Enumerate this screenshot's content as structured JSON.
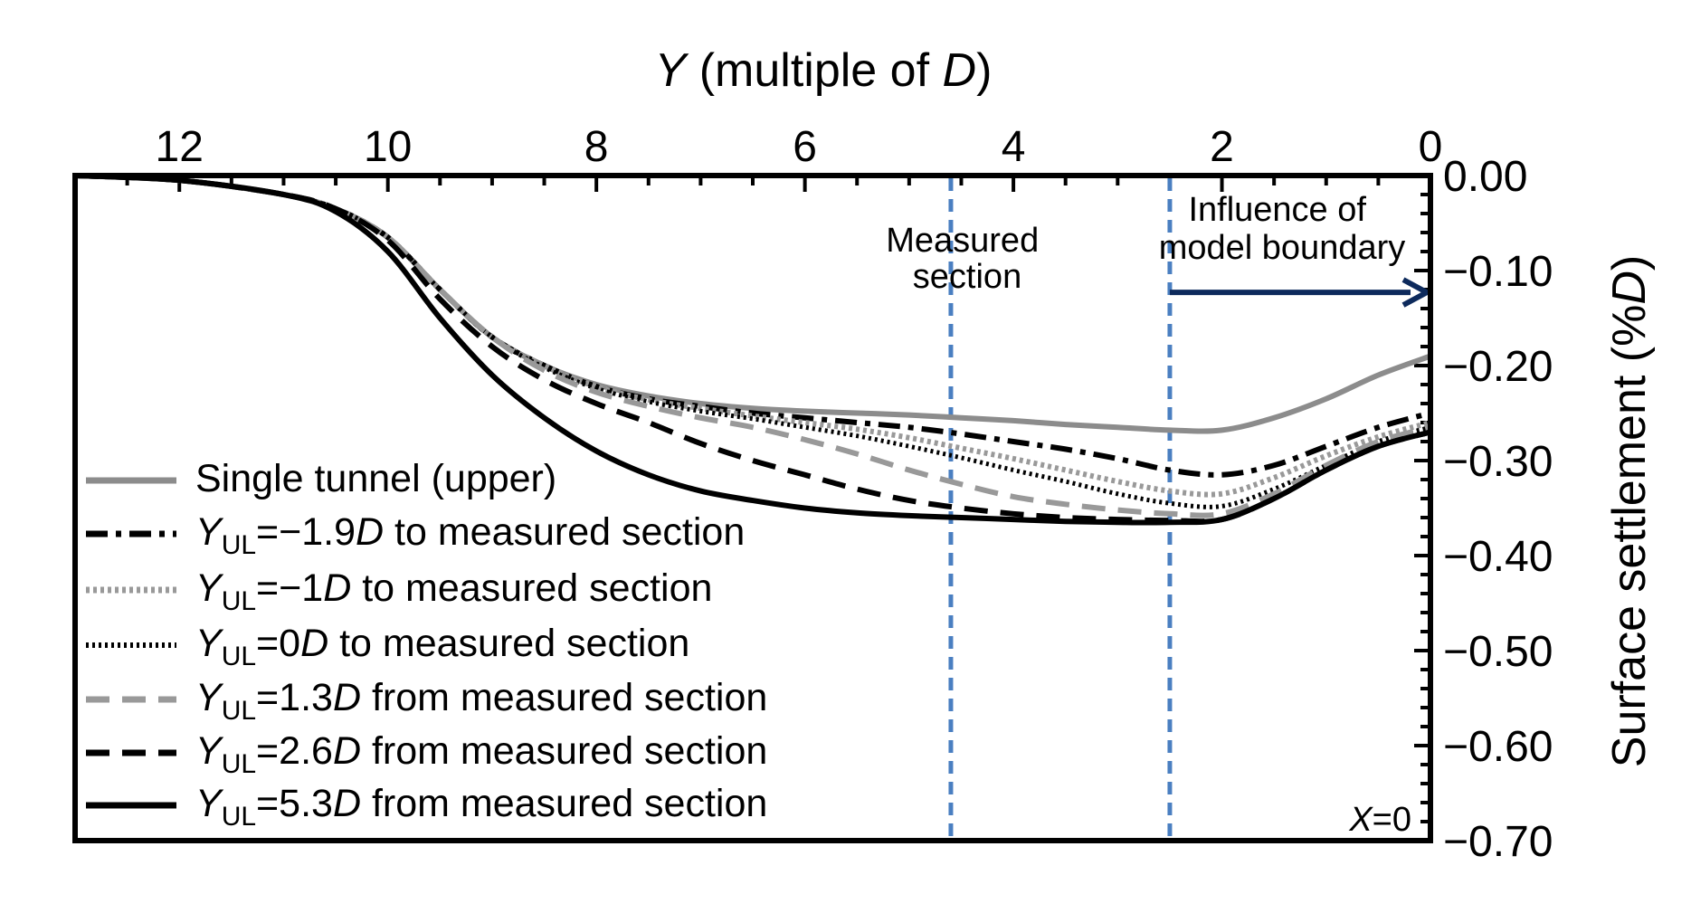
{
  "chart_data": {
    "type": "line",
    "x_axis": {
      "label_var": "Y",
      "label_text": " (multiple of ",
      "label_unit": "D",
      "label_close": ")",
      "position": "top",
      "reversed": true,
      "range": [
        13.0,
        0
      ],
      "ticks": [
        12,
        10,
        8,
        6,
        4,
        2,
        0
      ],
      "tick_labels": [
        "12",
        "10",
        "8",
        "6",
        "4",
        "2",
        "0"
      ]
    },
    "y_axis": {
      "label_text": "Surface settlement (%",
      "label_unit": "D",
      "label_close": ")",
      "position": "right",
      "range": [
        -0.7,
        0.0
      ],
      "ticks": [
        0.0,
        -0.1,
        -0.2,
        -0.3,
        -0.4,
        -0.5,
        -0.6,
        -0.7
      ],
      "tick_labels": [
        "0.00",
        "−0.10",
        "−0.20",
        "−0.30",
        "−0.40",
        "−0.50",
        "−0.60",
        "−0.70"
      ]
    },
    "grid": false,
    "legend_position": "bottom-left",
    "x_values": [
      13.0,
      12.0,
      11.0,
      10.5,
      10.0,
      9.5,
      9.0,
      8.5,
      8.0,
      7.5,
      7.0,
      6.5,
      6.0,
      5.5,
      5.0,
      4.5,
      4.0,
      3.5,
      3.0,
      2.5,
      2.0,
      1.5,
      1.0,
      0.5,
      0.0
    ],
    "series": [
      {
        "name_text": "Single tunnel (upper)",
        "color": "#8c8c8c",
        "style": "solid",
        "width": 6,
        "y": [
          0,
          -0.005,
          -0.02,
          -0.035,
          -0.065,
          -0.12,
          -0.17,
          -0.2,
          -0.22,
          -0.232,
          -0.24,
          -0.245,
          -0.248,
          -0.25,
          -0.252,
          -0.255,
          -0.258,
          -0.262,
          -0.265,
          -0.268,
          -0.268,
          -0.255,
          -0.235,
          -0.21,
          -0.19
        ]
      },
      {
        "name_var": "Y",
        "name_sub": "UL",
        "name_eq": "=−1.9",
        "name_unit": "D",
        "name_rest": " to measured section",
        "color": "#000000",
        "style": "dashdot",
        "width": 6,
        "y": [
          0,
          -0.005,
          -0.02,
          -0.035,
          -0.065,
          -0.12,
          -0.17,
          -0.2,
          -0.222,
          -0.235,
          -0.243,
          -0.25,
          -0.255,
          -0.26,
          -0.265,
          -0.272,
          -0.28,
          -0.288,
          -0.298,
          -0.31,
          -0.315,
          -0.305,
          -0.285,
          -0.265,
          -0.25
        ]
      },
      {
        "name_var": "Y",
        "name_sub": "UL",
        "name_eq": "=−1",
        "name_unit": "D",
        "name_rest": " to measured section",
        "color": "#999999",
        "style": "dotted",
        "width": 6,
        "y": [
          0,
          -0.005,
          -0.02,
          -0.035,
          -0.065,
          -0.12,
          -0.17,
          -0.2,
          -0.222,
          -0.236,
          -0.245,
          -0.253,
          -0.26,
          -0.267,
          -0.276,
          -0.287,
          -0.298,
          -0.31,
          -0.322,
          -0.332,
          -0.335,
          -0.318,
          -0.295,
          -0.275,
          -0.26
        ]
      },
      {
        "name_var": "Y",
        "name_sub": "UL",
        "name_eq": "=0",
        "name_unit": "D",
        "name_rest": " to measured section",
        "color": "#000000",
        "style": "finedot",
        "width": 5,
        "y": [
          0,
          -0.005,
          -0.02,
          -0.035,
          -0.065,
          -0.12,
          -0.17,
          -0.202,
          -0.224,
          -0.238,
          -0.248,
          -0.256,
          -0.265,
          -0.274,
          -0.285,
          -0.297,
          -0.31,
          -0.322,
          -0.335,
          -0.345,
          -0.348,
          -0.33,
          -0.305,
          -0.28,
          -0.265
        ]
      },
      {
        "name_var": "Y",
        "name_sub": "UL",
        "name_eq": "=1.3",
        "name_unit": "D",
        "name_rest": " from measured section",
        "color": "#999999",
        "style": "dashed",
        "width": 6,
        "y": [
          0,
          -0.005,
          -0.02,
          -0.035,
          -0.065,
          -0.12,
          -0.17,
          -0.205,
          -0.228,
          -0.243,
          -0.255,
          -0.265,
          -0.278,
          -0.293,
          -0.31,
          -0.325,
          -0.338,
          -0.346,
          -0.352,
          -0.356,
          -0.356,
          -0.335,
          -0.305,
          -0.28,
          -0.265
        ]
      },
      {
        "name_var": "Y",
        "name_sub": "UL",
        "name_eq": "=2.6",
        "name_unit": "D",
        "name_rest": " from measured section",
        "color": "#000000",
        "style": "dashed",
        "width": 6,
        "y": [
          0,
          -0.005,
          -0.02,
          -0.035,
          -0.068,
          -0.13,
          -0.18,
          -0.215,
          -0.24,
          -0.26,
          -0.282,
          -0.3,
          -0.315,
          -0.33,
          -0.342,
          -0.35,
          -0.356,
          -0.36,
          -0.362,
          -0.363,
          -0.362,
          -0.34,
          -0.31,
          -0.285,
          -0.27
        ]
      },
      {
        "name_var": "Y",
        "name_sub": "UL",
        "name_eq": "=5.3",
        "name_unit": "D",
        "name_rest": " from measured section",
        "color": "#000000",
        "style": "solid",
        "width": 6,
        "y": [
          0,
          -0.005,
          -0.02,
          -0.038,
          -0.08,
          -0.15,
          -0.21,
          -0.255,
          -0.29,
          -0.315,
          -0.332,
          -0.342,
          -0.35,
          -0.355,
          -0.358,
          -0.36,
          -0.362,
          -0.364,
          -0.365,
          -0.365,
          -0.362,
          -0.34,
          -0.31,
          -0.285,
          -0.27
        ]
      }
    ],
    "reference_lines": [
      {
        "x": 4.6,
        "color": "#4a7fc1",
        "style": "dashed",
        "label_lines": [
          "Measured",
          "section"
        ]
      },
      {
        "x": 2.5,
        "color": "#4a7fc1",
        "style": "dashed",
        "label_lines": [
          "Influence of",
          "model boundary"
        ]
      }
    ],
    "arrow": {
      "from_x": 2.5,
      "to_x": 0.0,
      "y": -0.123,
      "color": "#0d2a5c"
    },
    "corner_note": {
      "var": "X",
      "rest": "=0"
    }
  }
}
